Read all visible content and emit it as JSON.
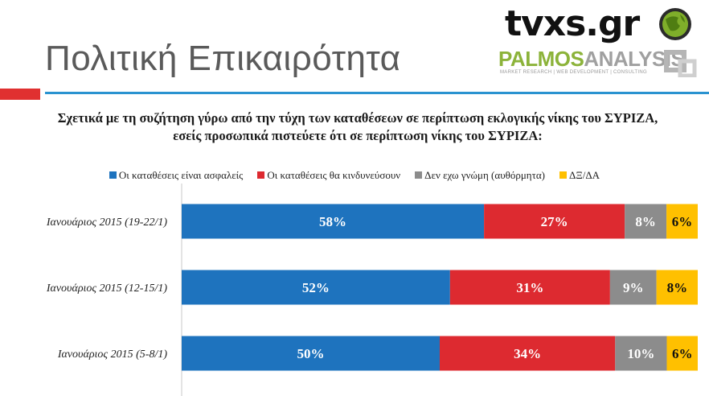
{
  "header": {
    "page_title": "Πολιτική Επικαιρότητα",
    "logo_tvxs": "tvxs.gr",
    "logo_palmos_part1": "PALMOS",
    "logo_palmos_part2": "ANALYSIS",
    "logo_tagline": "MARKET RESEARCH | WEB DEVELOPMENT | CONSULTING"
  },
  "chart_data": {
    "type": "bar",
    "orientation": "horizontal",
    "stacked": true,
    "title": "Σχετικά με τη συζήτηση γύρω από την τύχη των καταθέσεων σε περίπτωση εκλογικής νίκης του ΣΥΡΙΖΑ, εσείς προσωπικά πιστεύετε ότι σε περίπτωση νίκης του ΣΥΡΙΖΑ:",
    "categories": [
      "Ιανουάριος 2015 (19-22/1)",
      "Ιανουάριος 2015 (12-15/1)",
      "Ιανουάριος 2015 (5-8/1)"
    ],
    "series": [
      {
        "name": "Οι καταθέσεις είναι ασφαλείς",
        "color": "#1e73be",
        "values": [
          58,
          52,
          50
        ],
        "labels": [
          "58%",
          "52%",
          "50%"
        ]
      },
      {
        "name": "Οι καταθέσεις θα κινδυνεύσουν",
        "color": "#dd2a30",
        "values": [
          27,
          31,
          34
        ],
        "labels": [
          "27%",
          "31%",
          "34%"
        ]
      },
      {
        "name": "Δεν εχω γνώμη (αυθόρμητα)",
        "color": "#8c8c8c",
        "values": [
          8,
          9,
          10
        ],
        "labels": [
          "8%",
          "9%",
          "10%"
        ]
      },
      {
        "name": "ΔΞ/ΔΑ",
        "color": "#ffc000",
        "values": [
          6,
          8,
          6
        ],
        "labels": [
          "6%",
          "8%",
          "6%"
        ]
      }
    ],
    "legend_position": "top",
    "grid": false
  }
}
